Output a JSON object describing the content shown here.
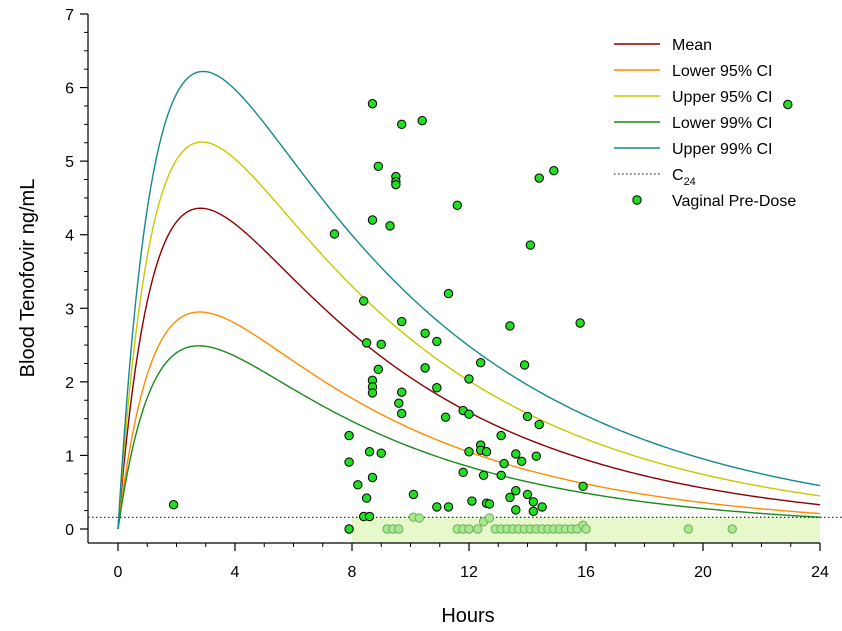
{
  "chart_data": {
    "type": "line",
    "title": "",
    "xlabel": "Hours",
    "ylabel": "Blood Tenofovir ng/mL",
    "xlim": [
      0,
      24
    ],
    "ylim": [
      0,
      7
    ],
    "xticks": [
      "0",
      "4",
      "8",
      "12",
      "16",
      "20",
      "24"
    ],
    "yticks": [
      "0",
      "1",
      "2",
      "3",
      "4",
      "5",
      "6",
      "7"
    ],
    "grid": false,
    "legend_position": "top-right",
    "c24": {
      "label": "C",
      "subscript": "24",
      "value": 0.16,
      "color": "#000000"
    },
    "curves": [
      {
        "name": "Mean",
        "color": "#8b0000",
        "peak_time": 3,
        "peak_value": 4.36,
        "value_at_24": 0.33
      },
      {
        "name": "Lower 95% CI",
        "color": "#ff8c00",
        "peak_time": 3,
        "peak_value": 2.95,
        "value_at_24": 0.21
      },
      {
        "name": "Upper 95% CI",
        "color": "#c8c800",
        "peak_time": 3,
        "peak_value": 5.26,
        "value_at_24": 0.45
      },
      {
        "name": "Lower 99% CI",
        "color": "#1a8a1a",
        "peak_time": 3,
        "peak_value": 2.49,
        "value_at_24": 0.16
      },
      {
        "name": "Upper 99% CI",
        "color": "#16888e",
        "peak_time": 3,
        "peak_value": 6.22,
        "value_at_24": 0.59
      }
    ],
    "c24_legend_name": "C",
    "c24_legend_sub": "24",
    "scatter": {
      "name": "Vaginal Pre-Dose",
      "color": "#22dd22",
      "points": [
        [
          1.9,
          0.33
        ],
        [
          7.4,
          4.01
        ],
        [
          7.9,
          1.27
        ],
        [
          7.9,
          0.91
        ],
        [
          7.9,
          0.0
        ],
        [
          8.2,
          0.6
        ],
        [
          8.4,
          3.1
        ],
        [
          8.5,
          2.53
        ],
        [
          8.4,
          0.17
        ],
        [
          8.5,
          0.42
        ],
        [
          8.6,
          1.05
        ],
        [
          8.6,
          0.17
        ],
        [
          8.7,
          0.7
        ],
        [
          8.7,
          5.78
        ],
        [
          8.7,
          4.2
        ],
        [
          8.7,
          2.02
        ],
        [
          8.7,
          1.93
        ],
        [
          8.7,
          1.85
        ],
        [
          8.9,
          4.93
        ],
        [
          8.9,
          2.17
        ],
        [
          9.0,
          2.51
        ],
        [
          9.0,
          1.03
        ],
        [
          9.3,
          4.12
        ],
        [
          9.5,
          4.79
        ],
        [
          9.5,
          4.72
        ],
        [
          9.5,
          4.68
        ],
        [
          9.6,
          1.71
        ],
        [
          9.7,
          5.5
        ],
        [
          9.7,
          2.82
        ],
        [
          9.7,
          1.86
        ],
        [
          9.7,
          1.57
        ],
        [
          10.1,
          0.47
        ],
        [
          10.1,
          0.16
        ],
        [
          10.3,
          0.15
        ],
        [
          10.4,
          5.55
        ],
        [
          10.5,
          2.66
        ],
        [
          10.5,
          2.19
        ],
        [
          10.9,
          2.55
        ],
        [
          10.9,
          1.92
        ],
        [
          10.9,
          0.3
        ],
        [
          11.2,
          1.52
        ],
        [
          11.3,
          3.2
        ],
        [
          11.3,
          0.3
        ],
        [
          11.6,
          4.4
        ],
        [
          11.8,
          0.77
        ],
        [
          11.8,
          1.61
        ],
        [
          12.0,
          1.56
        ],
        [
          12.0,
          1.05
        ],
        [
          12.0,
          2.04
        ],
        [
          12.1,
          0.38
        ],
        [
          12.4,
          2.26
        ],
        [
          12.4,
          1.14
        ],
        [
          12.4,
          1.07
        ],
        [
          12.5,
          0.73
        ],
        [
          12.6,
          0.35
        ],
        [
          12.6,
          1.05
        ],
        [
          12.7,
          0.34
        ],
        [
          13.1,
          0.73
        ],
        [
          13.1,
          1.27
        ],
        [
          13.2,
          0.89
        ],
        [
          13.4,
          0.43
        ],
        [
          13.4,
          2.76
        ],
        [
          13.6,
          0.52
        ],
        [
          13.6,
          1.02
        ],
        [
          13.6,
          0.26
        ],
        [
          13.8,
          0.92
        ],
        [
          13.9,
          2.23
        ],
        [
          14.0,
          0.47
        ],
        [
          14.0,
          1.53
        ],
        [
          14.1,
          3.86
        ],
        [
          14.2,
          0.37
        ],
        [
          14.2,
          0.24
        ],
        [
          14.3,
          0.99
        ],
        [
          14.4,
          1.42
        ],
        [
          14.4,
          4.77
        ],
        [
          14.5,
          0.3
        ],
        [
          14.9,
          4.87
        ],
        [
          15.8,
          2.8
        ],
        [
          15.9,
          0.58
        ],
        [
          22.9,
          5.77
        ],
        [
          9.2,
          0.0
        ],
        [
          9.4,
          0.0
        ],
        [
          9.6,
          0.0
        ],
        [
          11.6,
          0.0
        ],
        [
          11.8,
          0.0
        ],
        [
          12.0,
          0.0
        ],
        [
          12.3,
          0.0
        ],
        [
          12.5,
          0.1
        ],
        [
          12.7,
          0.15
        ],
        [
          12.9,
          0.0
        ],
        [
          13.1,
          0.0
        ],
        [
          13.3,
          0.0
        ],
        [
          13.5,
          0.0
        ],
        [
          13.7,
          0.0
        ],
        [
          13.9,
          0.0
        ],
        [
          14.1,
          0.0
        ],
        [
          14.3,
          0.0
        ],
        [
          14.5,
          0.0
        ],
        [
          14.7,
          0.0
        ],
        [
          14.9,
          0.0
        ],
        [
          15.1,
          0.0
        ],
        [
          15.3,
          0.0
        ],
        [
          15.5,
          0.0
        ],
        [
          15.7,
          0.0
        ],
        [
          15.9,
          0.05
        ],
        [
          16.0,
          0.0
        ],
        [
          19.5,
          0.0
        ],
        [
          21.0,
          0.0
        ]
      ]
    }
  }
}
